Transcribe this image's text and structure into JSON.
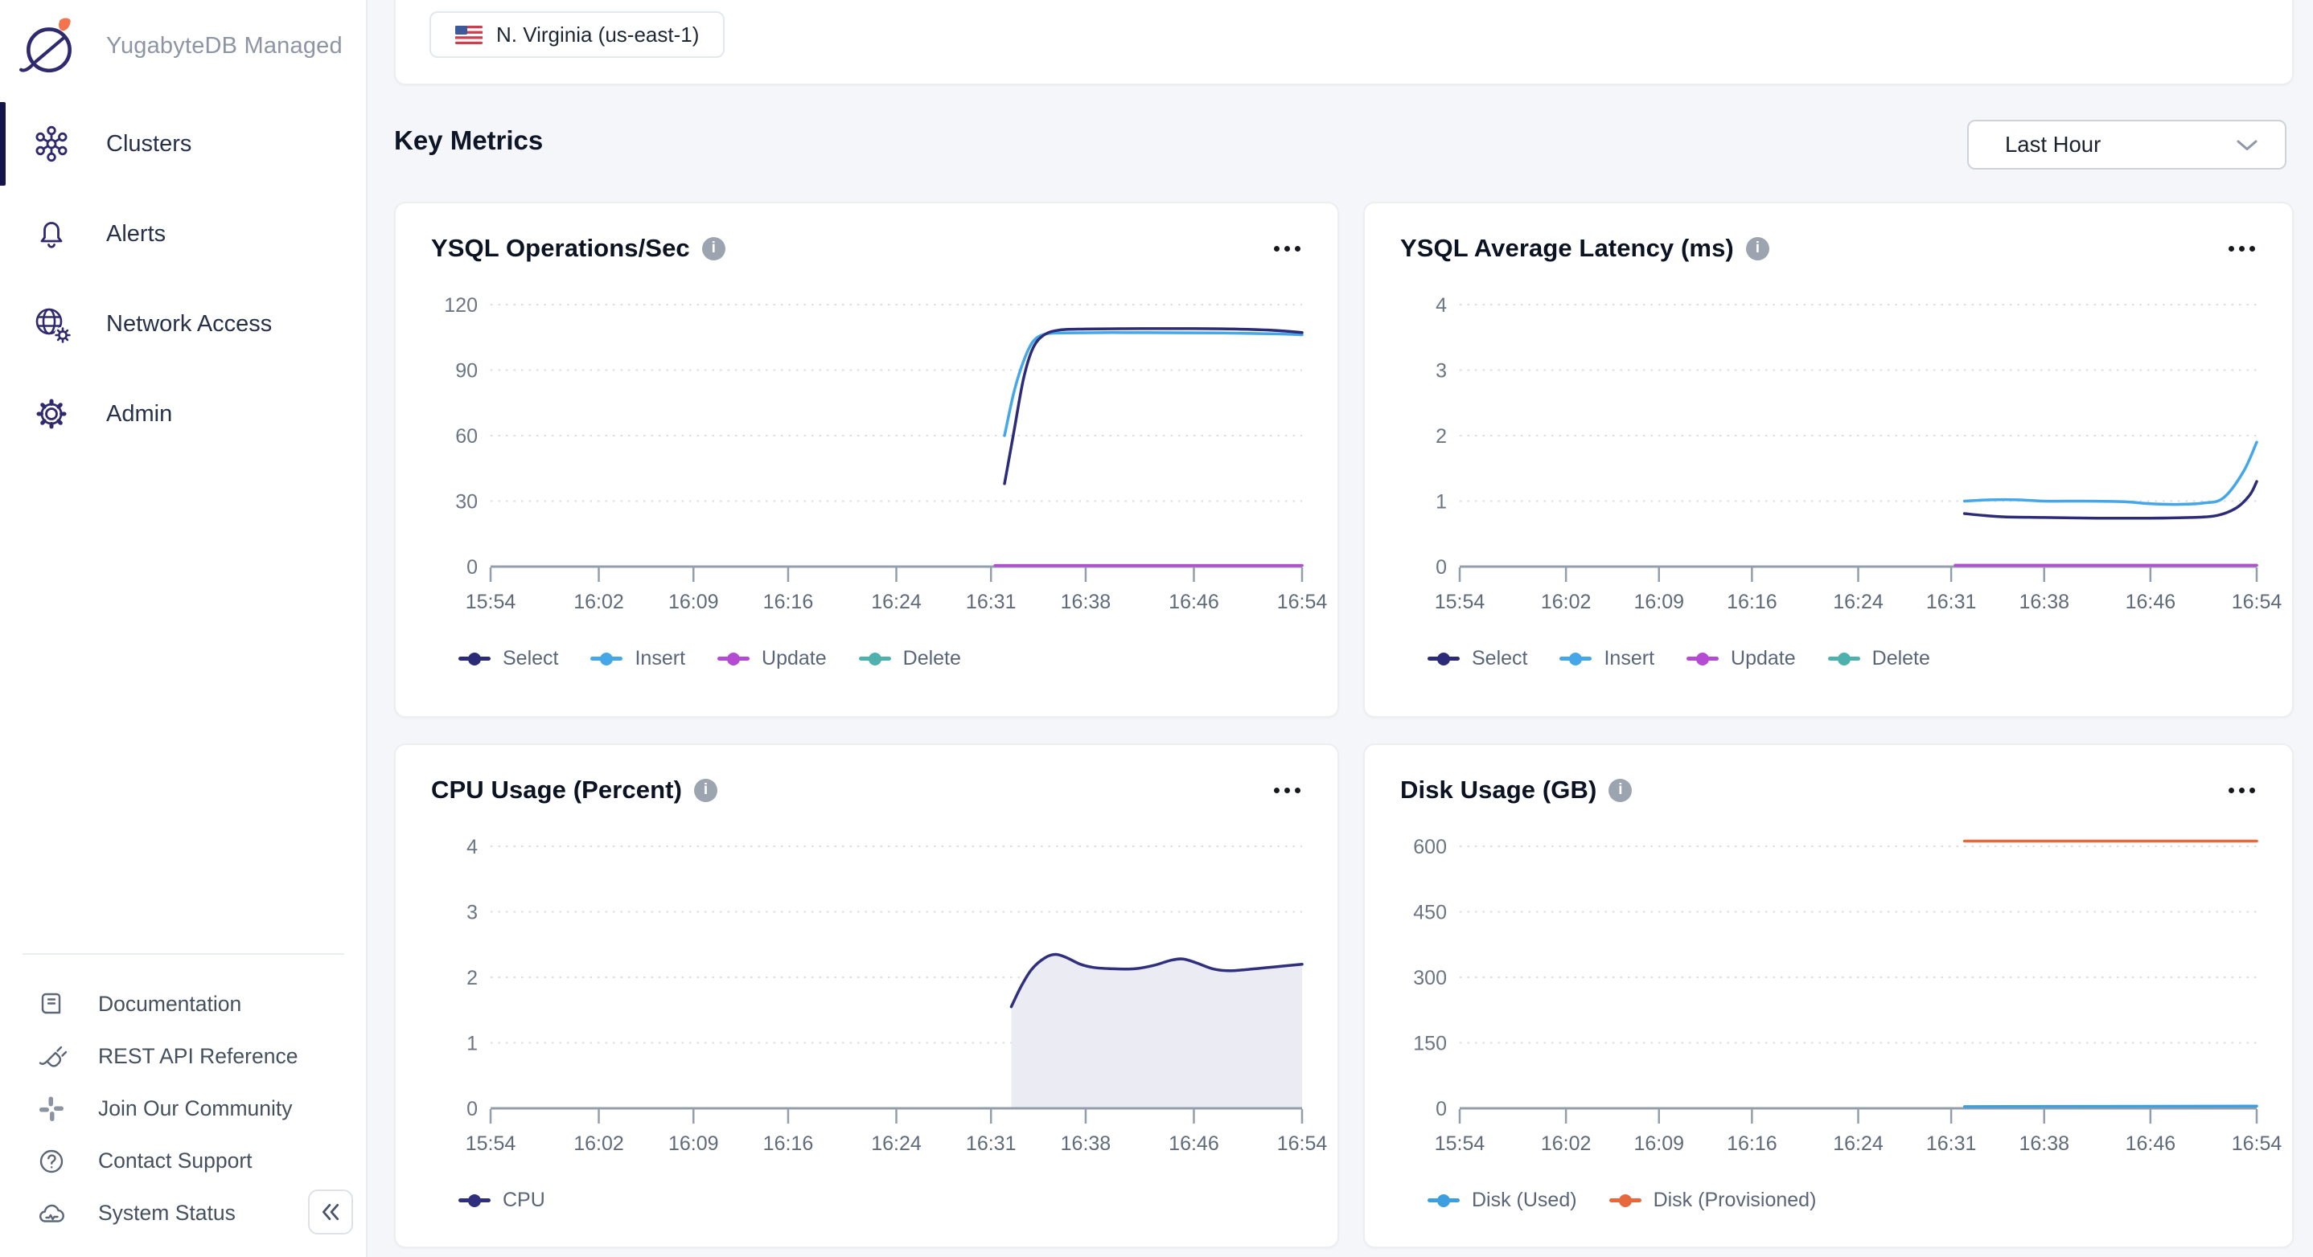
{
  "app": {
    "title": "YugabyteDB Managed"
  },
  "sidebar": {
    "nav": [
      {
        "label": "Clusters",
        "active": true
      },
      {
        "label": "Alerts",
        "active": false
      },
      {
        "label": "Network Access",
        "active": false
      },
      {
        "label": "Admin",
        "active": false
      }
    ],
    "footer_links": [
      {
        "label": "Documentation"
      },
      {
        "label": "REST API Reference"
      },
      {
        "label": "Join Our Community"
      },
      {
        "label": "Contact Support"
      },
      {
        "label": "System Status"
      }
    ]
  },
  "header": {
    "region_chip": "N. Virginia (us-east-1)"
  },
  "main": {
    "section_title": "Key Metrics",
    "time_range_value": "Last Hour"
  },
  "colors": {
    "brand_indigo": "#2f2a6e",
    "brand_flame": "#f1744e",
    "select_series": "#2b2b78",
    "insert_series": "#45a6e8",
    "update_series": "#b44bd2",
    "delete_series": "#4fb1ad",
    "cpu_series": "#2f2f7d",
    "cpu_fill": "#ebebf4",
    "disk_used_series": "#3d9fe0",
    "disk_provisioned_series": "#e8683e",
    "axis": "#939eac",
    "gridline": "#d9dee5"
  },
  "chart_data": [
    {
      "type": "line",
      "title": "YSQL Operations/Sec",
      "x_tick_labels": [
        "15:54",
        "16:02",
        "16:09",
        "16:16",
        "16:24",
        "16:31",
        "16:38",
        "16:46",
        "16:54"
      ],
      "x_tick_minutes": [
        0,
        8,
        15,
        22,
        30,
        37,
        44,
        52,
        60
      ],
      "x_range_minutes": [
        0,
        60
      ],
      "yticks": [
        0,
        30,
        60,
        90,
        120
      ],
      "ylim": [
        0,
        120
      ],
      "grid": "dotted-horizontal",
      "legend_position": "bottom",
      "series": [
        {
          "name": "Select",
          "color": "#2b2b78",
          "points": [
            [
              38,
              38
            ],
            [
              38.7,
              62
            ],
            [
              39.4,
              86
            ],
            [
              40.1,
              100
            ],
            [
              40.9,
              106
            ],
            [
              42,
              108.3
            ],
            [
              44,
              108.8
            ],
            [
              48,
              109
            ],
            [
              52,
              109
            ],
            [
              55,
              108.8
            ],
            [
              58,
              108.2
            ],
            [
              60,
              107.2
            ]
          ]
        },
        {
          "name": "Insert",
          "color": "#45a6e8",
          "points": [
            [
              38,
              60
            ],
            [
              38.7,
              80
            ],
            [
              39.4,
              94
            ],
            [
              40.1,
              103
            ],
            [
              41,
              106.5
            ],
            [
              42.5,
              107
            ],
            [
              46,
              107.2
            ],
            [
              50,
              107.1
            ],
            [
              54,
              107
            ],
            [
              58,
              106.6
            ],
            [
              60,
              106.2
            ]
          ]
        },
        {
          "name": "Update",
          "color": "#b44bd2",
          "points": [
            [
              37.3,
              0.5
            ],
            [
              60,
              0.5
            ]
          ]
        },
        {
          "name": "Delete",
          "color": "#4fb1ad",
          "points": [
            [
              37.3,
              0.5
            ],
            [
              60,
              0.5
            ]
          ]
        }
      ]
    },
    {
      "type": "line",
      "title": "YSQL Average Latency (ms)",
      "x_tick_labels": [
        "15:54",
        "16:02",
        "16:09",
        "16:16",
        "16:24",
        "16:31",
        "16:38",
        "16:46",
        "16:54"
      ],
      "x_tick_minutes": [
        0,
        8,
        15,
        22,
        30,
        37,
        44,
        52,
        60
      ],
      "x_range_minutes": [
        0,
        60
      ],
      "yticks": [
        0,
        1,
        2,
        3,
        4
      ],
      "ylim": [
        0,
        4
      ],
      "grid": "dotted-horizontal",
      "legend_position": "bottom",
      "series": [
        {
          "name": "Select",
          "color": "#2b2b78",
          "points": [
            [
              38,
              0.81
            ],
            [
              39.5,
              0.78
            ],
            [
              41,
              0.76
            ],
            [
              44,
              0.75
            ],
            [
              48,
              0.74
            ],
            [
              52,
              0.74
            ],
            [
              55,
              0.75
            ],
            [
              57,
              0.78
            ],
            [
              58.5,
              0.9
            ],
            [
              59.5,
              1.1
            ],
            [
              60,
              1.3
            ]
          ]
        },
        {
          "name": "Insert",
          "color": "#45a6e8",
          "points": [
            [
              38,
              1.0
            ],
            [
              40,
              1.02
            ],
            [
              42,
              1.02
            ],
            [
              44,
              1.0
            ],
            [
              47,
              1.0
            ],
            [
              50,
              0.99
            ],
            [
              52,
              0.96
            ],
            [
              54,
              0.95
            ],
            [
              56,
              0.97
            ],
            [
              57.5,
              1.05
            ],
            [
              59,
              1.45
            ],
            [
              60,
              1.9
            ]
          ]
        },
        {
          "name": "Update",
          "color": "#b44bd2",
          "points": [
            [
              37.3,
              0.02
            ],
            [
              60,
              0.02
            ]
          ]
        },
        {
          "name": "Delete",
          "color": "#4fb1ad",
          "points": [
            [
              37.3,
              0.02
            ],
            [
              60,
              0.02
            ]
          ]
        }
      ]
    },
    {
      "type": "area",
      "title": "CPU Usage (Percent)",
      "x_tick_labels": [
        "15:54",
        "16:02",
        "16:09",
        "16:16",
        "16:24",
        "16:31",
        "16:38",
        "16:46",
        "16:54"
      ],
      "x_tick_minutes": [
        0,
        8,
        15,
        22,
        30,
        37,
        44,
        52,
        60
      ],
      "x_range_minutes": [
        0,
        60
      ],
      "yticks": [
        0,
        1,
        2,
        3,
        4
      ],
      "ylim": [
        0,
        4
      ],
      "grid": "dotted-horizontal",
      "legend_position": "bottom",
      "series": [
        {
          "name": "CPU",
          "color": "#2f2f7d",
          "fill": "#ebebf4",
          "points": [
            [
              38.5,
              1.55
            ],
            [
              39.2,
              1.85
            ],
            [
              40,
              2.12
            ],
            [
              41,
              2.3
            ],
            [
              41.8,
              2.35
            ],
            [
              42.6,
              2.3
            ],
            [
              43.6,
              2.2
            ],
            [
              44.6,
              2.15
            ],
            [
              46,
              2.13
            ],
            [
              47.6,
              2.13
            ],
            [
              49,
              2.18
            ],
            [
              50.3,
              2.26
            ],
            [
              51.2,
              2.28
            ],
            [
              52.2,
              2.22
            ],
            [
              53.4,
              2.13
            ],
            [
              54.6,
              2.1
            ],
            [
              56,
              2.12
            ],
            [
              58,
              2.16
            ],
            [
              60,
              2.2
            ]
          ]
        }
      ]
    },
    {
      "type": "line",
      "title": "Disk Usage (GB)",
      "x_tick_labels": [
        "15:54",
        "16:02",
        "16:09",
        "16:16",
        "16:24",
        "16:31",
        "16:38",
        "16:46",
        "16:54"
      ],
      "x_tick_minutes": [
        0,
        8,
        15,
        22,
        30,
        37,
        44,
        52,
        60
      ],
      "x_range_minutes": [
        0,
        60
      ],
      "yticks": [
        0,
        150,
        300,
        450,
        600
      ],
      "ylim": [
        0,
        620
      ],
      "grid": "dotted-horizontal",
      "legend_position": "bottom",
      "series": [
        {
          "name": "Disk (Used)",
          "color": "#3d9fe0",
          "points": [
            [
              38,
              4
            ],
            [
              60,
              5
            ]
          ]
        },
        {
          "name": "Disk (Provisioned)",
          "color": "#e8683e",
          "points": [
            [
              38,
              612
            ],
            [
              60,
              612
            ]
          ]
        }
      ]
    }
  ]
}
